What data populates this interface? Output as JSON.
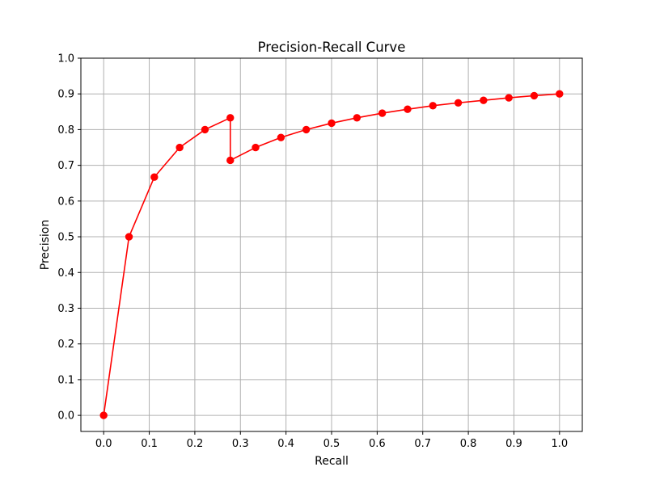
{
  "chart_data": {
    "type": "line",
    "title": "Precision-Recall Curve",
    "xlabel": "Recall",
    "ylabel": "Precision",
    "xlim": [
      -0.05,
      1.05
    ],
    "ylim": [
      -0.045,
      1.0
    ],
    "xticks": [
      "0.0",
      "0.1",
      "0.2",
      "0.3",
      "0.4",
      "0.5",
      "0.6",
      "0.7",
      "0.8",
      "0.9",
      "1.0"
    ],
    "yticks": [
      "0.0",
      "0.1",
      "0.2",
      "0.3",
      "0.4",
      "0.5",
      "0.6",
      "0.7",
      "0.8",
      "0.9",
      "1.0"
    ],
    "grid": true,
    "legend": false,
    "series": [
      {
        "color": "#ff0000",
        "marker": "circle",
        "x": [
          0.0,
          0.0556,
          0.1111,
          0.1667,
          0.2222,
          0.2778,
          0.2778,
          0.3333,
          0.3889,
          0.4444,
          0.5,
          0.5556,
          0.6111,
          0.6667,
          0.7222,
          0.7778,
          0.8333,
          0.8889,
          0.9444,
          1.0
        ],
        "y": [
          0.0,
          0.5,
          0.667,
          0.75,
          0.8,
          0.833,
          0.714,
          0.75,
          0.778,
          0.8,
          0.818,
          0.833,
          0.846,
          0.857,
          0.867,
          0.875,
          0.882,
          0.889,
          0.895,
          0.9
        ]
      }
    ]
  }
}
